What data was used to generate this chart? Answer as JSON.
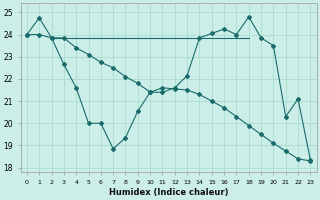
{
  "xlabel": "Humidex (Indice chaleur)",
  "bg_color": "#cceee8",
  "grid_color": "#aaddcc",
  "line_color": "#1a6b6b",
  "xlim": [
    -0.5,
    23.5
  ],
  "ylim": [
    17.8,
    25.4
  ],
  "yticks": [
    18,
    19,
    20,
    21,
    22,
    23,
    24,
    25
  ],
  "xticks": [
    0,
    1,
    2,
    3,
    4,
    5,
    6,
    7,
    8,
    9,
    10,
    11,
    12,
    13,
    14,
    15,
    16,
    17,
    18,
    19,
    20,
    21,
    22,
    23
  ],
  "line_flat_x": [
    2,
    3,
    4,
    5,
    6,
    7,
    8,
    9,
    10,
    11,
    12,
    13,
    14,
    15,
    16,
    17,
    18
  ],
  "line_flat_y": [
    23.85,
    23.85,
    23.85,
    23.85,
    23.85,
    23.85,
    23.85,
    23.85,
    23.85,
    23.85,
    23.85,
    23.85,
    23.85,
    23.85,
    23.85,
    23.85,
    23.85
  ],
  "line_zigzag_x": [
    0,
    1,
    2,
    3,
    4,
    5,
    6,
    7,
    8,
    9,
    10,
    11,
    12,
    13,
    14,
    15,
    16,
    17,
    18,
    19,
    20,
    21,
    22,
    23
  ],
  "line_zigzag_y": [
    24.0,
    24.75,
    23.85,
    22.65,
    21.6,
    20.0,
    20.0,
    18.85,
    19.35,
    20.55,
    21.4,
    21.4,
    21.6,
    22.15,
    23.85,
    24.05,
    24.25,
    24.0,
    24.8,
    23.85,
    23.5,
    20.3,
    21.1,
    18.35
  ],
  "line_desc_x": [
    0,
    1,
    2,
    3,
    4,
    5,
    6,
    7,
    8,
    9,
    10,
    11,
    12,
    13,
    14,
    15,
    16,
    17,
    18,
    19,
    20,
    21,
    22,
    23
  ],
  "line_desc_y": [
    24.0,
    24.0,
    23.85,
    23.85,
    23.4,
    23.1,
    22.75,
    22.5,
    22.1,
    21.8,
    21.4,
    21.6,
    21.55,
    21.5,
    21.3,
    21.0,
    20.7,
    20.3,
    19.9,
    19.5,
    19.1,
    18.75,
    18.4,
    18.3
  ]
}
